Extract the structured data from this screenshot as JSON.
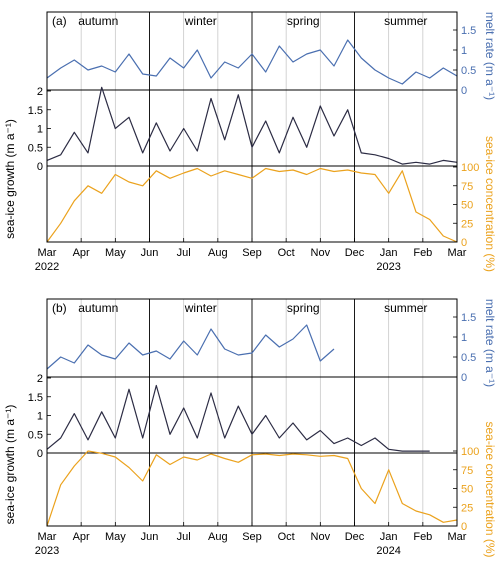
{
  "colors": {
    "melt": "#4a6fb0",
    "growth": "#2c2c44",
    "conc": "#eba21d",
    "frame": "#000000",
    "grid": "#c8c8c8"
  },
  "labels": {
    "left_axis": "sea-ice growth (m a⁻¹)",
    "right_axis_top": "melt rate (m a⁻¹)",
    "right_axis_bottom": "sea-ice concentration (%)"
  },
  "chart_data": [
    {
      "panel_label": "(a)",
      "type": "line",
      "seasons": [
        "autumn",
        "winter",
        "spring",
        "summer"
      ],
      "season_boundaries_month": [
        3,
        6,
        9,
        12
      ],
      "x_ticks": [
        "Mar",
        "Apr",
        "May",
        "Jun",
        "Jul",
        "Aug",
        "Sep",
        "Oct",
        "Nov",
        "Dec",
        "Jan",
        "Feb",
        "Mar"
      ],
      "year_labels": [
        {
          "month": 0,
          "label": "2022"
        },
        {
          "month": 10,
          "label": "2023"
        }
      ],
      "axes": {
        "melt_rate": {
          "ylim": [
            0,
            1.5
          ],
          "ticks": [
            "0",
            "0.5",
            "1",
            "1.5"
          ]
        },
        "growth": {
          "ylim": [
            0,
            2
          ],
          "ticks": [
            "0",
            "0.5",
            "1",
            "1.5",
            "2"
          ]
        },
        "concentration": {
          "ylim": [
            0,
            100
          ],
          "ticks": [
            "0",
            "25",
            "50",
            "75",
            "100"
          ]
        }
      },
      "series": [
        {
          "name": "melt rate",
          "x_month": [
            0,
            0.4,
            0.8,
            1.2,
            1.6,
            2.0,
            2.4,
            2.8,
            3.2,
            3.6,
            4.0,
            4.4,
            4.8,
            5.2,
            5.6,
            6.0,
            6.4,
            6.8,
            7.2,
            7.6,
            8.0,
            8.4,
            8.8,
            9.2,
            9.6,
            10.0,
            10.4,
            10.8,
            11.2,
            11.6,
            12.0
          ],
          "y": [
            0.3,
            0.55,
            0.75,
            0.5,
            0.6,
            0.45,
            0.9,
            0.4,
            0.35,
            0.8,
            0.55,
            1.0,
            0.3,
            0.7,
            0.55,
            0.9,
            0.45,
            1.1,
            0.7,
            0.9,
            1.0,
            0.6,
            1.25,
            0.8,
            0.5,
            0.3,
            0.15,
            0.45,
            0.3,
            0.55,
            0.35
          ]
        },
        {
          "name": "sea-ice growth",
          "x_month": [
            0,
            0.4,
            0.8,
            1.2,
            1.6,
            2.0,
            2.4,
            2.8,
            3.2,
            3.6,
            4.0,
            4.4,
            4.8,
            5.2,
            5.6,
            6.0,
            6.4,
            6.8,
            7.2,
            7.6,
            8.0,
            8.4,
            8.8,
            9.2,
            9.6,
            10.0,
            10.4,
            10.8,
            11.2,
            11.6,
            12.0
          ],
          "y": [
            0.15,
            0.3,
            0.9,
            0.35,
            2.1,
            1.0,
            1.3,
            0.35,
            1.15,
            0.4,
            1.0,
            0.4,
            1.8,
            0.7,
            1.9,
            0.5,
            1.2,
            0.35,
            1.3,
            0.5,
            1.6,
            0.8,
            1.5,
            0.35,
            0.3,
            0.2,
            0.05,
            0.1,
            0.05,
            0.15,
            0.1
          ]
        },
        {
          "name": "sea-ice concentration",
          "x_month": [
            0,
            0.4,
            0.8,
            1.2,
            1.6,
            2.0,
            2.4,
            2.8,
            3.2,
            3.6,
            4.0,
            4.4,
            4.8,
            5.2,
            5.6,
            6.0,
            6.4,
            6.8,
            7.2,
            7.6,
            8.0,
            8.4,
            8.8,
            9.2,
            9.6,
            10.0,
            10.4,
            10.8,
            11.2,
            11.6,
            12.0
          ],
          "y": [
            0,
            25,
            55,
            75,
            65,
            90,
            80,
            75,
            95,
            85,
            92,
            98,
            88,
            95,
            90,
            85,
            98,
            94,
            96,
            90,
            98,
            94,
            96,
            92,
            90,
            65,
            95,
            40,
            30,
            8,
            0
          ]
        }
      ]
    },
    {
      "panel_label": "(b)",
      "type": "line",
      "seasons": [
        "autumn",
        "winter",
        "spring",
        "summer"
      ],
      "season_boundaries_month": [
        3,
        6,
        9,
        12
      ],
      "x_ticks": [
        "Mar",
        "Apr",
        "May",
        "Jun",
        "Jul",
        "Aug",
        "Sep",
        "Oct",
        "Nov",
        "Dec",
        "Jan",
        "Feb",
        "Mar"
      ],
      "year_labels": [
        {
          "month": 0,
          "label": "2023"
        },
        {
          "month": 10,
          "label": "2024"
        }
      ],
      "axes": {
        "melt_rate": {
          "ylim": [
            0,
            1.5
          ],
          "ticks": [
            "0",
            "0.5",
            "1",
            "1.5"
          ]
        },
        "growth": {
          "ylim": [
            0,
            2
          ],
          "ticks": [
            "0",
            "0.5",
            "1",
            "1.5",
            "2"
          ]
        },
        "concentration": {
          "ylim": [
            0,
            100
          ],
          "ticks": [
            "0",
            "25",
            "50",
            "75",
            "100"
          ]
        }
      },
      "series": [
        {
          "name": "melt rate",
          "x_month": [
            0,
            0.4,
            0.8,
            1.2,
            1.6,
            2.0,
            2.4,
            2.8,
            3.2,
            3.6,
            4.0,
            4.4,
            4.8,
            5.2,
            5.6,
            6.0,
            6.4,
            6.8,
            7.2,
            7.6,
            8.0,
            8.4
          ],
          "y": [
            0.2,
            0.5,
            0.35,
            0.8,
            0.55,
            0.45,
            0.85,
            0.55,
            0.65,
            0.45,
            0.9,
            0.55,
            1.2,
            0.7,
            0.55,
            0.6,
            1.05,
            0.75,
            0.95,
            1.3,
            0.4,
            0.7
          ]
        },
        {
          "name": "sea-ice growth",
          "x_month": [
            0,
            0.4,
            0.8,
            1.2,
            1.6,
            2.0,
            2.4,
            2.8,
            3.2,
            3.6,
            4.0,
            4.4,
            4.8,
            5.2,
            5.6,
            6.0,
            6.4,
            6.8,
            7.2,
            7.6,
            8.0,
            8.4,
            8.8,
            9.2,
            9.6,
            10.0,
            10.4,
            10.8,
            11.2
          ],
          "y": [
            0.1,
            0.4,
            1.05,
            0.35,
            1.1,
            0.4,
            1.7,
            0.4,
            1.8,
            0.5,
            1.2,
            0.4,
            1.6,
            0.4,
            1.25,
            0.5,
            1.0,
            0.4,
            0.8,
            0.35,
            0.6,
            0.25,
            0.4,
            0.2,
            0.4,
            0.1,
            0.05,
            0.05,
            0.05
          ]
        },
        {
          "name": "sea-ice concentration",
          "x_month": [
            0,
            0.4,
            0.8,
            1.2,
            1.6,
            2.0,
            2.4,
            2.8,
            3.2,
            3.6,
            4.0,
            4.4,
            4.8,
            5.2,
            5.6,
            6.0,
            6.4,
            6.8,
            7.2,
            7.6,
            8.0,
            8.4,
            8.8,
            9.2,
            9.6,
            10.0,
            10.4,
            10.8,
            11.2,
            11.6,
            12.0
          ],
          "y": [
            0,
            55,
            80,
            100,
            97,
            92,
            78,
            60,
            95,
            82,
            92,
            88,
            96,
            90,
            85,
            95,
            96,
            94,
            96,
            95,
            93,
            94,
            90,
            50,
            30,
            75,
            30,
            20,
            15,
            5,
            8
          ]
        }
      ]
    }
  ]
}
